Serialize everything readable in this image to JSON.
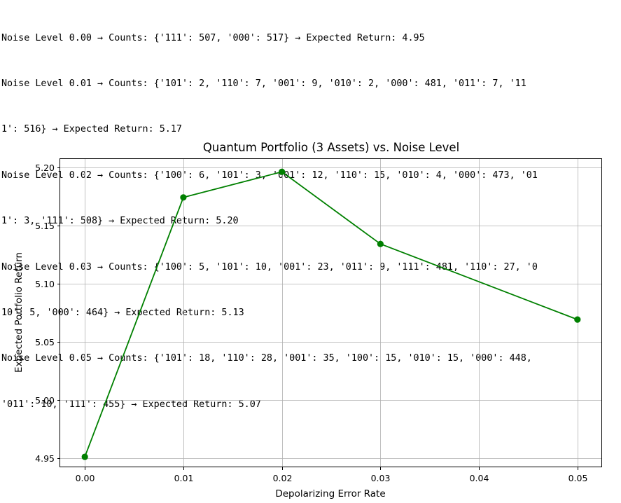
{
  "output_lines": [
    "Noise Level 0.00 → Counts: {'111': 507, '000': 517} → Expected Return: 4.95",
    "Noise Level 0.01 → Counts: {'101': 2, '110': 7, '001': 9, '010': 2, '000': 481, '011': 7, '11",
    "1': 516} → Expected Return: 5.17",
    "Noise Level 0.02 → Counts: {'100': 6, '101': 3, '001': 12, '110': 15, '010': 4, '000': 473, '01",
    "1': 3, '111': 508} → Expected Return: 5.20",
    "Noise Level 0.03 → Counts: {'100': 5, '101': 10, '001': 23, '011': 9, '111': 481, '110': 27, '0",
    "10': 5, '000': 464} → Expected Return: 5.13",
    "Noise Level 0.05 → Counts: {'101': 18, '110': 28, '001': 35, '100': 15, '010': 15, '000': 448,",
    "'011': 10, '111': 455} → Expected Return: 5.07"
  ],
  "chart_data": {
    "type": "line",
    "title": "Quantum Portfolio (3 Assets) vs. Noise Level",
    "xlabel": "Depolarizing Error Rate",
    "ylabel": "Expected Portfolio Return",
    "x": [
      0.0,
      0.01,
      0.02,
      0.03,
      0.05
    ],
    "series": [
      {
        "values": [
          4.951,
          5.174,
          5.196,
          5.134,
          5.069
        ],
        "color": "#008000",
        "marker": "circle"
      }
    ],
    "xlim": [
      -0.0025,
      0.0525
    ],
    "ylim": [
      4.942,
      5.207
    ],
    "xticks": [
      0.0,
      0.01,
      0.02,
      0.03,
      0.04,
      0.05
    ],
    "xtick_labels": [
      "0.00",
      "0.01",
      "0.02",
      "0.03",
      "0.04",
      "0.05"
    ],
    "yticks": [
      4.95,
      5.0,
      5.05,
      5.1,
      5.15,
      5.2
    ],
    "ytick_labels": [
      "4.95",
      "5.00",
      "5.05",
      "5.10",
      "5.15",
      "5.20"
    ],
    "grid": true,
    "legend": "none"
  }
}
